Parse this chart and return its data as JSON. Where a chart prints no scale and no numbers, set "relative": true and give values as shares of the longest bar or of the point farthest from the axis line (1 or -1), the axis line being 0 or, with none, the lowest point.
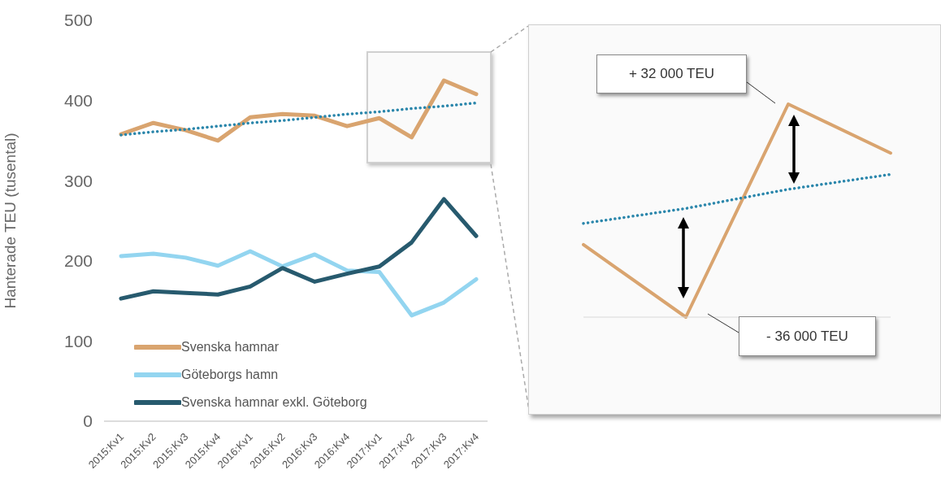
{
  "chart_data": [
    {
      "type": "line",
      "ylabel": "Hanterade TEU (tusental)",
      "categories": [
        "2015:Kv1",
        "2015:Kv2",
        "2015:Kv3",
        "2015:Kv4",
        "2016:Kv1",
        "2016:Kv2",
        "2016:Kv3",
        "2016:Kv4",
        "2017:Kv1",
        "2017:Kv2",
        "2017:Kv3",
        "2017:Kv4"
      ],
      "series": [
        {
          "name": "Svenska hamnar",
          "color": "#d9a46f",
          "values": [
            358,
            372,
            363,
            350,
            379,
            383,
            381,
            368,
            378,
            354,
            425,
            408
          ]
        },
        {
          "name": "Göteborgs hamn",
          "color": "#93d5f0",
          "values": [
            206,
            209,
            204,
            194,
            212,
            193,
            208,
            188,
            186,
            132,
            148,
            177
          ]
        },
        {
          "name": "Svenska hamnar exkl. Göteborg",
          "color": "#275a6e",
          "values": [
            153,
            162,
            160,
            158,
            168,
            191,
            174,
            184,
            193,
            223,
            277,
            231
          ]
        },
        {
          "color": "#2a86ab",
          "line_style": "dotted",
          "values": [
            357,
            361,
            364,
            368,
            372,
            375,
            379,
            383,
            386,
            390,
            393,
            397
          ]
        }
      ],
      "ylim": [
        0,
        500
      ],
      "yticks": [
        0,
        100,
        200,
        300,
        400,
        500
      ],
      "legend": "bottom left",
      "marker": "none"
    },
    {
      "type": "line",
      "relative": true,
      "categories": [
        null,
        null,
        null,
        null
      ],
      "series": [
        {
          "color": "#d9a46f",
          "values": [
            0.34,
            0,
            1,
            0.77
          ]
        },
        {
          "color": "#2a86ab",
          "line_style": "dotted",
          "values": [
            0.44,
            0.51,
            0.6,
            0.67
          ]
        }
      ],
      "annotations": [
        "+ 32 000 TEU",
        "- 36 000 TEU"
      ],
      "marker": "none"
    }
  ]
}
